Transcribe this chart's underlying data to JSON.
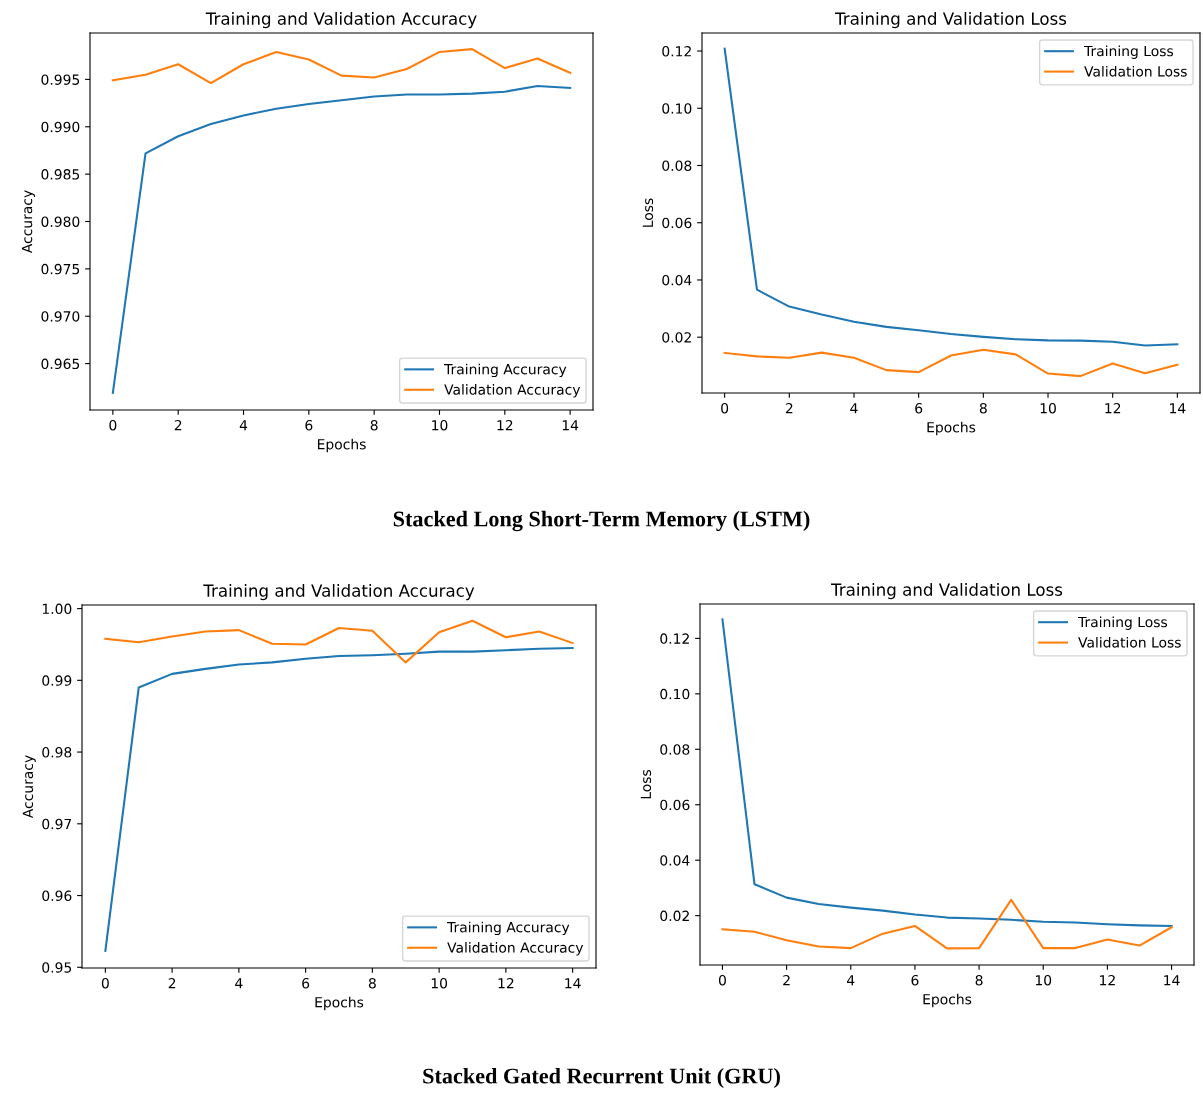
{
  "chart_data": [
    {
      "type": "line",
      "title": "Training and Validation Accuracy",
      "xlabel": "Epochs",
      "ylabel": "Accuracy",
      "x": [
        0,
        1,
        2,
        3,
        4,
        5,
        6,
        7,
        8,
        9,
        10,
        11,
        12,
        13,
        14
      ],
      "xlim": [
        -0.7,
        14.7
      ],
      "xticks": [
        0,
        2,
        4,
        6,
        8,
        10,
        12,
        14
      ],
      "ylim": [
        0.9601,
        0.9999
      ],
      "yticks": [
        0.965,
        {
          "value": 0.97,
          "label": "0.970"
        },
        0.975,
        {
          "value": 0.98,
          "label": "0.980"
        },
        0.985,
        {
          "value": 0.99,
          "label": "0.990"
        },
        0.995
      ],
      "legend": "bottom right",
      "grid": false,
      "series": [
        {
          "name": "Training Accuracy",
          "color": "#1f77b4",
          "values": [
            0.9619,
            0.9872,
            0.989,
            0.9903,
            0.9912,
            0.9919,
            0.9924,
            0.9928,
            0.9932,
            0.9934,
            0.9934,
            0.9935,
            0.9937,
            0.9943,
            0.9941
          ]
        },
        {
          "name": "Validation Accuracy",
          "color": "#ff7f0e",
          "values": [
            0.9949,
            0.9955,
            0.9966,
            0.9946,
            0.9966,
            0.9979,
            0.9971,
            0.9954,
            0.9952,
            0.9961,
            0.9979,
            0.9982,
            0.9962,
            0.9972,
            0.9957
          ]
        }
      ],
      "annotations": [
        "Stacked Long Short-Term Memory (LSTM)"
      ]
    },
    {
      "type": "line",
      "title": "Training and Validation Loss",
      "xlabel": "Epochs",
      "ylabel": "Loss",
      "x": [
        0,
        1,
        2,
        3,
        4,
        5,
        6,
        7,
        8,
        9,
        10,
        11,
        12,
        13,
        14
      ],
      "xlim": [
        -0.7,
        14.7
      ],
      "xticks": [
        0,
        2,
        4,
        6,
        8,
        10,
        12,
        14
      ],
      "ylim": [
        0.0005,
        0.1263
      ],
      "yticks": [
        {
          "value": 0.02,
          "label": "0.02"
        },
        {
          "value": 0.04,
          "label": "0.04"
        },
        {
          "value": 0.06,
          "label": "0.06"
        },
        {
          "value": 0.08,
          "label": "0.08"
        },
        {
          "value": 0.1,
          "label": "0.10"
        },
        {
          "value": 0.12,
          "label": "0.12"
        }
      ],
      "legend": "top right",
      "grid": false,
      "series": [
        {
          "name": "Training Loss",
          "color": "#1f77b4",
          "values": [
            0.1208,
            0.0366,
            0.0307,
            0.0279,
            0.0254,
            0.0236,
            0.0224,
            0.0211,
            0.0201,
            0.0193,
            0.0189,
            0.0188,
            0.0184,
            0.0171,
            0.0175
          ]
        },
        {
          "name": "Validation Loss",
          "color": "#ff7f0e",
          "values": [
            0.0145,
            0.0133,
            0.0128,
            0.0146,
            0.0128,
            0.0085,
            0.0078,
            0.0136,
            0.0156,
            0.014,
            0.0073,
            0.0064,
            0.0108,
            0.0074,
            0.0104
          ]
        }
      ]
    },
    {
      "type": "line",
      "title": "Training and Validation Accuracy",
      "xlabel": "Epochs",
      "ylabel": "Accuracy",
      "x": [
        0,
        1,
        2,
        3,
        4,
        5,
        6,
        7,
        8,
        9,
        10,
        11,
        12,
        13,
        14
      ],
      "xlim": [
        -0.7,
        14.7
      ],
      "xticks": [
        0,
        2,
        4,
        6,
        8,
        10,
        12,
        14
      ],
      "ylim": [
        0.9499,
        1.0005
      ],
      "yticks": [
        {
          "value": 0.95,
          "label": "0.95"
        },
        {
          "value": 0.96,
          "label": "0.96"
        },
        {
          "value": 0.97,
          "label": "0.97"
        },
        {
          "value": 0.98,
          "label": "0.98"
        },
        {
          "value": 0.99,
          "label": "0.99"
        },
        {
          "value": 1.0,
          "label": "1.00"
        }
      ],
      "legend": "bottom right",
      "grid": false,
      "series": [
        {
          "name": "Training Accuracy",
          "color": "#1f77b4",
          "values": [
            0.9523,
            0.989,
            0.9909,
            0.9916,
            0.9922,
            0.9925,
            0.993,
            0.9934,
            0.9935,
            0.9937,
            0.994,
            0.994,
            0.9942,
            0.9944,
            0.9945
          ]
        },
        {
          "name": "Validation Accuracy",
          "color": "#ff7f0e",
          "values": [
            0.9958,
            0.9953,
            0.9961,
            0.9968,
            0.997,
            0.9951,
            0.995,
            0.9973,
            0.9969,
            0.9925,
            0.9967,
            0.9983,
            0.996,
            0.9968,
            0.9952
          ]
        }
      ],
      "annotations": [
        "Stacked Gated Recurrent Unit (GRU)"
      ]
    },
    {
      "type": "line",
      "title": "Training and Validation Loss",
      "xlabel": "Epochs",
      "ylabel": "Loss",
      "x": [
        0,
        1,
        2,
        3,
        4,
        5,
        6,
        7,
        8,
        9,
        10,
        11,
        12,
        13,
        14
      ],
      "xlim": [
        -0.7,
        14.7
      ],
      "xticks": [
        0,
        2,
        4,
        6,
        8,
        10,
        12,
        14
      ],
      "ylim": [
        0.0022,
        0.1324
      ],
      "yticks": [
        {
          "value": 0.02,
          "label": "0.02"
        },
        {
          "value": 0.04,
          "label": "0.04"
        },
        {
          "value": 0.06,
          "label": "0.06"
        },
        {
          "value": 0.08,
          "label": "0.08"
        },
        {
          "value": 0.1,
          "label": "0.10"
        },
        {
          "value": 0.12,
          "label": "0.12"
        }
      ],
      "legend": "top right",
      "grid": false,
      "series": [
        {
          "name": "Training Loss",
          "color": "#1f77b4",
          "values": [
            0.1268,
            0.0313,
            0.0265,
            0.0242,
            0.0229,
            0.0218,
            0.0204,
            0.0193,
            0.019,
            0.0185,
            0.0178,
            0.0175,
            0.0169,
            0.0165,
            0.0163
          ]
        },
        {
          "name": "Validation Loss",
          "color": "#ff7f0e",
          "values": [
            0.0151,
            0.0142,
            0.0111,
            0.0089,
            0.0083,
            0.0135,
            0.0163,
            0.0082,
            0.0083,
            0.0257,
            0.0083,
            0.0083,
            0.0114,
            0.0092,
            0.0158
          ]
        }
      ]
    }
  ]
}
